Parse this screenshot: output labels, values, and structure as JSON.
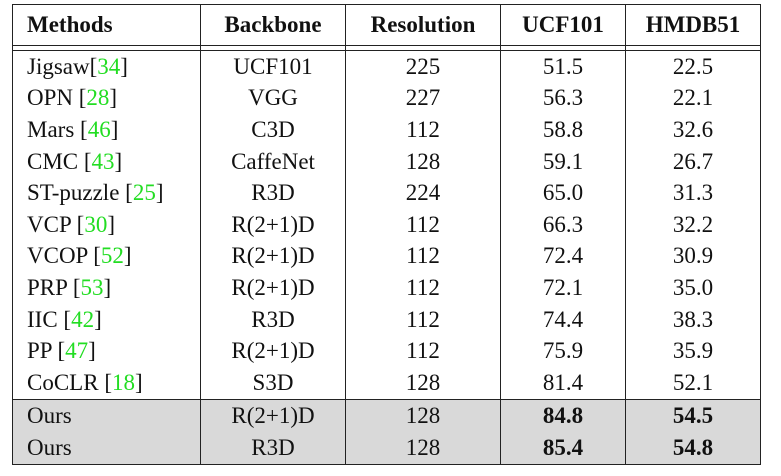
{
  "table": {
    "header": [
      "Methods",
      "Backbone",
      "Resolution",
      "UCF101",
      "HMDB51"
    ],
    "rows": [
      [
        [
          "Jigsaw[",
          "34",
          "]"
        ],
        "UCF101",
        "225",
        "51.5",
        "22.5"
      ],
      [
        [
          "OPN [",
          "28",
          "]"
        ],
        "VGG",
        "227",
        "56.3",
        "22.1"
      ],
      [
        [
          "Mars [",
          "46",
          "]"
        ],
        "C3D",
        "112",
        "58.8",
        "32.6"
      ],
      [
        [
          "CMC [",
          "43",
          "]"
        ],
        "CaffeNet",
        "128",
        "59.1",
        "26.7"
      ],
      [
        [
          "ST-puzzle [",
          "25",
          "]"
        ],
        "R3D",
        "224",
        "65.0",
        "31.3"
      ],
      [
        [
          "VCP [",
          "30",
          "]"
        ],
        "R(2+1)D",
        "112",
        "66.3",
        "32.2"
      ],
      [
        [
          "VCOP [",
          "52",
          "]"
        ],
        "R(2+1)D",
        "112",
        "72.4",
        "30.9"
      ],
      [
        [
          "PRP [",
          "53",
          "]"
        ],
        "R(2+1)D",
        "112",
        "72.1",
        "35.0"
      ],
      [
        [
          "IIC [",
          "42",
          "]"
        ],
        "R3D",
        "112",
        "74.4",
        "38.3"
      ],
      [
        [
          "PP [",
          "47",
          "]"
        ],
        "R(2+1)D",
        "112",
        "75.9",
        "35.9"
      ],
      [
        [
          "CoCLR [",
          "18",
          "]"
        ],
        "S3D",
        "128",
        "81.4",
        "52.1"
      ]
    ],
    "ours_rows": [
      [
        [
          "Ours"
        ],
        "R(2+1)D",
        "128",
        "84.8",
        "54.5"
      ],
      [
        [
          "Ours"
        ],
        "R3D",
        "128",
        "85.4",
        "54.8"
      ]
    ]
  }
}
